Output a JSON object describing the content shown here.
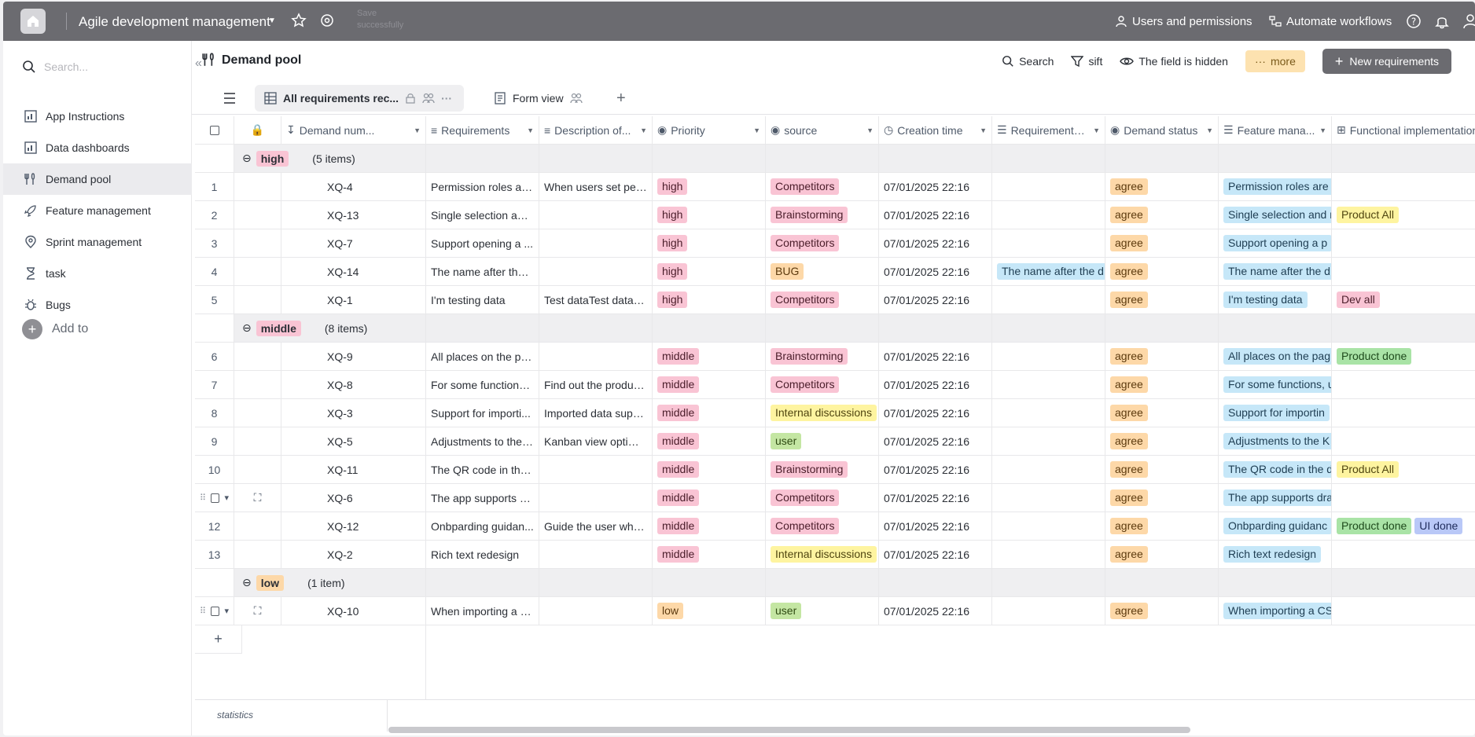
{
  "topbar": {
    "app_title": "Agile development management",
    "save_status": "Save successfully",
    "users_permissions": "Users and permissions",
    "automate_workflows": "Automate workflows"
  },
  "sidebar": {
    "search_placeholder": "Search...",
    "items": [
      {
        "label": "App Instructions",
        "icon": "app-instructions-icon"
      },
      {
        "label": "Data dashboards",
        "icon": "dashboard-icon"
      },
      {
        "label": "Demand pool",
        "icon": "demand-pool-icon",
        "active": true
      },
      {
        "label": "Feature management",
        "icon": "rocket-icon"
      },
      {
        "label": "Sprint management",
        "icon": "location-pin-icon"
      },
      {
        "label": "task",
        "icon": "hourglass-icon"
      },
      {
        "label": "Bugs",
        "icon": "bug-icon"
      }
    ],
    "add_label": "Add to"
  },
  "page": {
    "title": "Demand pool",
    "search_label": "Search",
    "sift_label": "sift",
    "hidden_label": "The field is hidden",
    "more_label": "more",
    "new_button": "New requirements"
  },
  "views": {
    "tabs": [
      "All requirements rec...",
      "Form view"
    ]
  },
  "table": {
    "columns": [
      "Demand num...",
      "Requirements",
      "Description of...",
      "Priority",
      "source",
      "Creation time",
      "Requirements ...",
      "Demand status",
      "Feature mana...",
      "Functional implementation status"
    ],
    "groups": [
      {
        "name": "high",
        "count": "(5 items)",
        "color": "#f9c4d4"
      },
      {
        "name": "middle",
        "count": "(8 items)",
        "color": "#f9c4d4"
      },
      {
        "name": "low",
        "count": "(1 item)",
        "color": "#fdd8a8"
      }
    ],
    "rows": [
      {
        "idx": "1",
        "num": "XQ-4",
        "req": "Permission roles are...",
        "desc": "When users set per...",
        "priority": "high",
        "source": "Competitors",
        "time": "07/01/2025 22:16",
        "req2": "",
        "status": "agree",
        "feature": "Permission roles are r",
        "impl": []
      },
      {
        "idx": "2",
        "num": "XQ-13",
        "req": "Single selection and...",
        "desc": "",
        "priority": "high",
        "source": "Brainstorming",
        "time": "07/01/2025 22:16",
        "req2": "",
        "status": "agree",
        "feature": "Single selection and r",
        "impl": [
          "Product All"
        ]
      },
      {
        "idx": "3",
        "num": "XQ-7",
        "req": "Support opening a ...",
        "desc": "",
        "priority": "high",
        "source": "Competitors",
        "time": "07/01/2025 22:16",
        "req2": "",
        "status": "agree",
        "feature": "Support opening a p",
        "impl": []
      },
      {
        "idx": "4",
        "num": "XQ-14",
        "req": "The name after the ...",
        "desc": "",
        "priority": "high",
        "source": "BUG",
        "time": "07/01/2025 22:16",
        "req2": "The name after the d",
        "status": "agree",
        "feature": "The name after the d",
        "impl": []
      },
      {
        "idx": "5",
        "num": "XQ-1",
        "req": "I'm testing data",
        "desc": "Test dataTest dataTe...",
        "priority": "high",
        "source": "Competitors",
        "time": "07/01/2025 22:16",
        "req2": "",
        "status": "agree",
        "feature": "I'm testing data",
        "impl": [
          "Dev all"
        ]
      },
      {
        "idx": "6",
        "num": "XQ-9",
        "req": "All places on the pa...",
        "desc": "",
        "priority": "middle",
        "source": "Brainstorming",
        "time": "07/01/2025 22:16",
        "req2": "",
        "status": "agree",
        "feature": "All places on the pag",
        "impl": [
          "Product done"
        ]
      },
      {
        "idx": "7",
        "num": "XQ-8",
        "req": "For some functions, ...",
        "desc": "Find out the produc...",
        "priority": "middle",
        "source": "Competitors",
        "time": "07/01/2025 22:16",
        "req2": "",
        "status": "agree",
        "feature": "For some functions, u",
        "impl": []
      },
      {
        "idx": "8",
        "num": "XQ-3",
        "req": "Support for importi...",
        "desc": "Imported data supp...",
        "priority": "middle",
        "source": "Internal discussions",
        "time": "07/01/2025 22:16",
        "req2": "",
        "status": "agree",
        "feature": "Support for importin",
        "impl": []
      },
      {
        "idx": "9",
        "num": "XQ-5",
        "req": "Adjustments to the ...",
        "desc": "Kanban view optimi...",
        "priority": "middle",
        "source": "user",
        "time": "07/01/2025 22:16",
        "req2": "",
        "status": "agree",
        "feature": "Adjustments to the K",
        "impl": []
      },
      {
        "idx": "10",
        "num": "XQ-11",
        "req": "The QR code in the ...",
        "desc": "",
        "priority": "middle",
        "source": "Brainstorming",
        "time": "07/01/2025 22:16",
        "req2": "",
        "status": "agree",
        "feature": "The QR code in the d",
        "impl": [
          "Product All"
        ]
      },
      {
        "idx": "",
        "num": "XQ-6",
        "req": "The app supports dr...",
        "desc": "",
        "priority": "middle",
        "source": "Competitors",
        "time": "07/01/2025 22:16",
        "req2": "",
        "status": "agree",
        "feature": "The app supports dra",
        "impl": []
      },
      {
        "idx": "12",
        "num": "XQ-12",
        "req": "Onbparding guidan...",
        "desc": "Guide the user whe...",
        "priority": "middle",
        "source": "Competitors",
        "time": "07/01/2025 22:16",
        "req2": "",
        "status": "agree",
        "feature": "Onbparding guidanc",
        "impl": [
          "Product done",
          "UI done"
        ]
      },
      {
        "idx": "13",
        "num": "XQ-2",
        "req": "Rich text redesign",
        "desc": "",
        "priority": "middle",
        "source": "Internal discussions",
        "time": "07/01/2025 22:16",
        "req2": "",
        "status": "agree",
        "feature": "Rich text redesign",
        "impl": []
      },
      {
        "idx": "",
        "num": "XQ-10",
        "req": "When importing a C...",
        "desc": "",
        "priority": "low",
        "source": "user",
        "time": "07/01/2025 22:16",
        "req2": "",
        "status": "agree",
        "feature": "When importing a CS",
        "impl": []
      }
    ],
    "colors": {
      "high": "t-pink",
      "middle": "t-pink",
      "low": "t-orange",
      "Competitors": "t-pink",
      "Brainstorming": "t-pink",
      "BUG": "t-orange",
      "Internal discussions": "t-yellow",
      "user": "t-green",
      "agree": "t-orange",
      "Product All": "t-yellow",
      "Dev all": "t-pink",
      "Product done": "t-lgreen",
      "UI done": "t-lav"
    }
  },
  "footer": {
    "statistics_label": "statistics"
  }
}
